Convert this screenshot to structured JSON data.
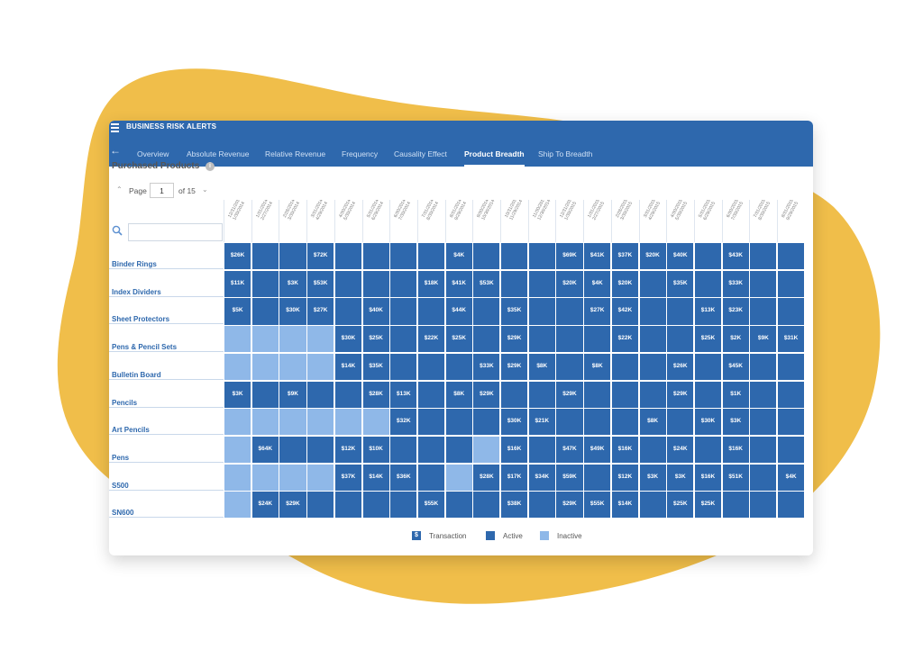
{
  "colors": {
    "blob": "#f0be4a",
    "primary": "#2e68ad",
    "active": "#2e68ad",
    "inactive": "#8fb8e8",
    "text_link": "#2e68ad"
  },
  "app": {
    "title": "BUSINESS RISK ALERTS"
  },
  "nav": {
    "back_icon": "back-arrow-icon",
    "tabs": [
      {
        "label": "Overview",
        "active": false
      },
      {
        "label": "Absolute Revenue",
        "active": false
      },
      {
        "label": "Relative Revenue",
        "active": false
      },
      {
        "label": "Frequency",
        "active": false
      },
      {
        "label": "Causality Effect",
        "active": false
      },
      {
        "label": "Product Breadth",
        "active": true
      },
      {
        "label": "Ship To Breadth",
        "active": false
      }
    ]
  },
  "section": {
    "title": "Purchased Products",
    "info_icon": "info-icon"
  },
  "pager": {
    "label": "Page",
    "value": "1",
    "total": "of 15"
  },
  "search": {
    "placeholder": ""
  },
  "columns": [
    [
      "12/31/2013",
      "1/30/2014"
    ],
    [
      "1/31/2014",
      "2/27/2014"
    ],
    [
      "2/28/2014",
      "3/30/2014"
    ],
    [
      "3/31/2014",
      "4/29/2014"
    ],
    [
      "4/30/2014",
      "5/30/2014"
    ],
    [
      "5/31/2014",
      "6/29/2014"
    ],
    [
      "6/30/2014",
      "7/30/2014"
    ],
    [
      "7/31/2014",
      "8/30/2014"
    ],
    [
      "8/31/2014",
      "9/29/2014"
    ],
    [
      "9/30/2014",
      "10/30/2014"
    ],
    [
      "10/31/2014",
      "11/29/2014"
    ],
    [
      "11/30/2014",
      "12/30/2014"
    ],
    [
      "12/31/2014",
      "1/30/2015"
    ],
    [
      "1/31/2015",
      "2/27/2015"
    ],
    [
      "2/28/2015",
      "3/30/2015"
    ],
    [
      "3/31/2015",
      "4/29/2015"
    ],
    [
      "4/30/2015",
      "5/30/2015"
    ],
    [
      "5/31/2015",
      "6/29/2015"
    ],
    [
      "6/30/2015",
      "7/30/2015"
    ],
    [
      "7/31/2015",
      "8/30/2015"
    ],
    [
      "8/31/2015",
      "9/29/2015"
    ]
  ],
  "rows": [
    {
      "label": "Binder Rings",
      "cells": [
        [
          "a",
          "$26K"
        ],
        [
          "a",
          ""
        ],
        [
          "a",
          ""
        ],
        [
          "a",
          "$72K"
        ],
        [
          "a",
          ""
        ],
        [
          "a",
          ""
        ],
        [
          "a",
          ""
        ],
        [
          "a",
          ""
        ],
        [
          "a",
          "$4K"
        ],
        [
          "a",
          ""
        ],
        [
          "a",
          ""
        ],
        [
          "a",
          ""
        ],
        [
          "a",
          "$69K"
        ],
        [
          "a",
          "$41K"
        ],
        [
          "a",
          "$37K"
        ],
        [
          "a",
          "$20K"
        ],
        [
          "a",
          "$40K"
        ],
        [
          "a",
          ""
        ],
        [
          "a",
          "$43K"
        ],
        [
          "a",
          ""
        ],
        [
          "a",
          ""
        ]
      ]
    },
    {
      "label": "Index Dividers",
      "cells": [
        [
          "a",
          "$11K"
        ],
        [
          "a",
          ""
        ],
        [
          "a",
          "$3K"
        ],
        [
          "a",
          "$53K"
        ],
        [
          "a",
          ""
        ],
        [
          "a",
          ""
        ],
        [
          "a",
          ""
        ],
        [
          "a",
          "$18K"
        ],
        [
          "a",
          "$41K"
        ],
        [
          "a",
          "$53K"
        ],
        [
          "a",
          ""
        ],
        [
          "a",
          ""
        ],
        [
          "a",
          "$20K"
        ],
        [
          "a",
          "$4K"
        ],
        [
          "a",
          "$20K"
        ],
        [
          "a",
          ""
        ],
        [
          "a",
          "$35K"
        ],
        [
          "a",
          ""
        ],
        [
          "a",
          "$33K"
        ],
        [
          "a",
          ""
        ],
        [
          "a",
          ""
        ]
      ]
    },
    {
      "label": "Sheet Protectors",
      "cells": [
        [
          "a",
          "$5K"
        ],
        [
          "a",
          ""
        ],
        [
          "a",
          "$30K"
        ],
        [
          "a",
          "$27K"
        ],
        [
          "a",
          ""
        ],
        [
          "a",
          "$40K"
        ],
        [
          "a",
          ""
        ],
        [
          "a",
          ""
        ],
        [
          "a",
          "$44K"
        ],
        [
          "a",
          ""
        ],
        [
          "a",
          "$35K"
        ],
        [
          "a",
          ""
        ],
        [
          "a",
          ""
        ],
        [
          "a",
          "$27K"
        ],
        [
          "a",
          "$42K"
        ],
        [
          "a",
          ""
        ],
        [
          "a",
          ""
        ],
        [
          "a",
          "$13K"
        ],
        [
          "a",
          "$23K"
        ],
        [
          "a",
          ""
        ],
        [
          "a",
          ""
        ]
      ]
    },
    {
      "label": "Pens & Pencil Sets",
      "cells": [
        [
          "i",
          ""
        ],
        [
          "i",
          ""
        ],
        [
          "i",
          ""
        ],
        [
          "i",
          ""
        ],
        [
          "a",
          "$30K"
        ],
        [
          "a",
          "$25K"
        ],
        [
          "a",
          ""
        ],
        [
          "a",
          "$22K"
        ],
        [
          "a",
          "$25K"
        ],
        [
          "a",
          ""
        ],
        [
          "a",
          "$29K"
        ],
        [
          "a",
          ""
        ],
        [
          "a",
          ""
        ],
        [
          "a",
          ""
        ],
        [
          "a",
          "$22K"
        ],
        [
          "a",
          ""
        ],
        [
          "a",
          ""
        ],
        [
          "a",
          "$25K"
        ],
        [
          "a",
          "$2K"
        ],
        [
          "a",
          "$9K"
        ],
        [
          "a",
          "$31K"
        ]
      ]
    },
    {
      "label": "Bulletin Board",
      "cells": [
        [
          "i",
          ""
        ],
        [
          "i",
          ""
        ],
        [
          "i",
          ""
        ],
        [
          "i",
          ""
        ],
        [
          "a",
          "$14K"
        ],
        [
          "a",
          "$35K"
        ],
        [
          "a",
          ""
        ],
        [
          "a",
          ""
        ],
        [
          "a",
          ""
        ],
        [
          "a",
          "$33K"
        ],
        [
          "a",
          "$29K"
        ],
        [
          "a",
          "$8K"
        ],
        [
          "a",
          ""
        ],
        [
          "a",
          "$8K"
        ],
        [
          "a",
          ""
        ],
        [
          "a",
          ""
        ],
        [
          "a",
          "$26K"
        ],
        [
          "a",
          ""
        ],
        [
          "a",
          "$45K"
        ],
        [
          "a",
          ""
        ],
        [
          "a",
          ""
        ]
      ]
    },
    {
      "label": "Pencils",
      "cells": [
        [
          "a",
          "$3K"
        ],
        [
          "a",
          ""
        ],
        [
          "a",
          "$9K"
        ],
        [
          "a",
          ""
        ],
        [
          "a",
          ""
        ],
        [
          "a",
          "$28K"
        ],
        [
          "a",
          "$13K"
        ],
        [
          "a",
          ""
        ],
        [
          "a",
          "$8K"
        ],
        [
          "a",
          "$29K"
        ],
        [
          "a",
          ""
        ],
        [
          "a",
          ""
        ],
        [
          "a",
          "$29K"
        ],
        [
          "a",
          ""
        ],
        [
          "a",
          ""
        ],
        [
          "a",
          ""
        ],
        [
          "a",
          "$29K"
        ],
        [
          "a",
          ""
        ],
        [
          "a",
          "$1K"
        ],
        [
          "a",
          ""
        ],
        [
          "a",
          ""
        ]
      ]
    },
    {
      "label": "Art Pencils",
      "cells": [
        [
          "i",
          ""
        ],
        [
          "i",
          ""
        ],
        [
          "i",
          ""
        ],
        [
          "i",
          ""
        ],
        [
          "i",
          ""
        ],
        [
          "i",
          ""
        ],
        [
          "a",
          "$32K"
        ],
        [
          "a",
          ""
        ],
        [
          "a",
          ""
        ],
        [
          "a",
          ""
        ],
        [
          "a",
          "$30K"
        ],
        [
          "a",
          "$21K"
        ],
        [
          "a",
          ""
        ],
        [
          "a",
          ""
        ],
        [
          "a",
          ""
        ],
        [
          "a",
          "$8K"
        ],
        [
          "a",
          ""
        ],
        [
          "a",
          "$30K"
        ],
        [
          "a",
          "$3K"
        ],
        [
          "a",
          ""
        ],
        [
          "a",
          ""
        ]
      ]
    },
    {
      "label": "Pens",
      "cells": [
        [
          "i",
          ""
        ],
        [
          "a",
          "$64K"
        ],
        [
          "a",
          ""
        ],
        [
          "a",
          ""
        ],
        [
          "a",
          "$12K"
        ],
        [
          "a",
          "$10K"
        ],
        [
          "a",
          ""
        ],
        [
          "a",
          ""
        ],
        [
          "a",
          ""
        ],
        [
          "i",
          ""
        ],
        [
          "a",
          "$16K"
        ],
        [
          "a",
          ""
        ],
        [
          "a",
          "$47K"
        ],
        [
          "a",
          "$49K"
        ],
        [
          "a",
          "$16K"
        ],
        [
          "a",
          ""
        ],
        [
          "a",
          "$24K"
        ],
        [
          "a",
          ""
        ],
        [
          "a",
          "$16K"
        ],
        [
          "a",
          ""
        ],
        [
          "a",
          ""
        ]
      ]
    },
    {
      "label": "S500",
      "cells": [
        [
          "i",
          ""
        ],
        [
          "i",
          ""
        ],
        [
          "i",
          ""
        ],
        [
          "i",
          ""
        ],
        [
          "a",
          "$37K"
        ],
        [
          "a",
          "$14K"
        ],
        [
          "a",
          "$36K"
        ],
        [
          "a",
          ""
        ],
        [
          "i",
          ""
        ],
        [
          "a",
          "$28K"
        ],
        [
          "a",
          "$17K"
        ],
        [
          "a",
          "$34K"
        ],
        [
          "a",
          "$59K"
        ],
        [
          "a",
          ""
        ],
        [
          "a",
          "$12K"
        ],
        [
          "a",
          "$3K"
        ],
        [
          "a",
          "$3K"
        ],
        [
          "a",
          "$16K"
        ],
        [
          "a",
          "$51K"
        ],
        [
          "a",
          ""
        ],
        [
          "a",
          "$4K"
        ]
      ]
    },
    {
      "label": "SN600",
      "cells": [
        [
          "i",
          ""
        ],
        [
          "a",
          "$24K"
        ],
        [
          "a",
          "$29K"
        ],
        [
          "a",
          ""
        ],
        [
          "a",
          ""
        ],
        [
          "a",
          ""
        ],
        [
          "a",
          ""
        ],
        [
          "a",
          "$55K"
        ],
        [
          "a",
          ""
        ],
        [
          "a",
          ""
        ],
        [
          "a",
          "$38K"
        ],
        [
          "a",
          ""
        ],
        [
          "a",
          "$29K"
        ],
        [
          "a",
          "$55K"
        ],
        [
          "a",
          "$14K"
        ],
        [
          "a",
          ""
        ],
        [
          "a",
          "$25K"
        ],
        [
          "a",
          "$25K"
        ],
        [
          "a",
          ""
        ],
        [
          "a",
          ""
        ],
        [
          "a",
          ""
        ]
      ]
    }
  ],
  "legend": [
    {
      "label": "Transaction",
      "icon": "dollar-icon",
      "glyph": "$"
    },
    {
      "label": "Active"
    },
    {
      "label": "Inactive"
    }
  ]
}
